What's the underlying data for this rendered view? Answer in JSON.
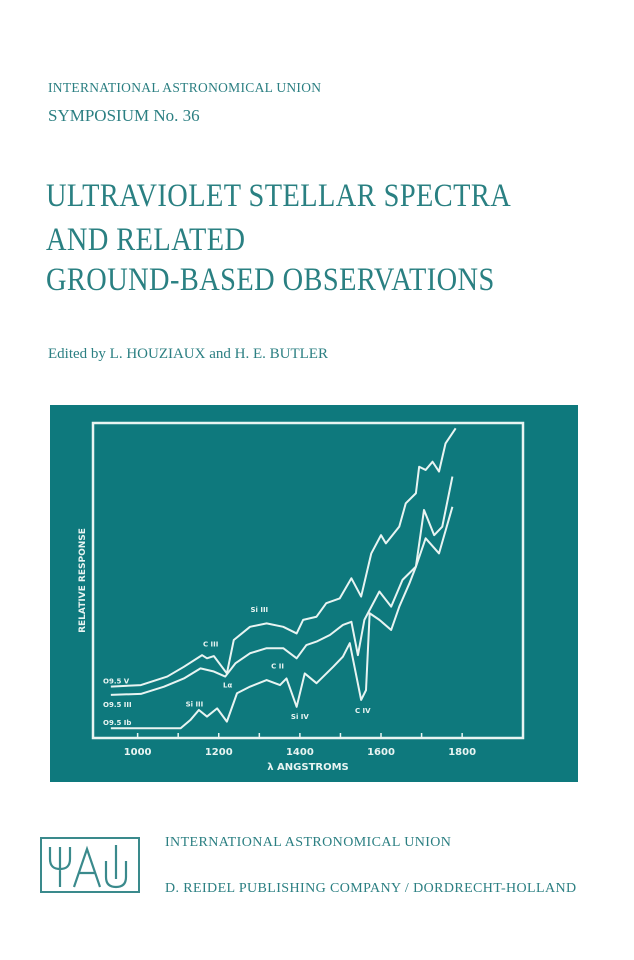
{
  "cover": {
    "series": "INTERNATIONAL ASTRONOMICAL UNION",
    "symposium": "SYMPOSIUM No. 36",
    "title_lines": [
      "ULTRAVIOLET STELLAR SPECTRA",
      "AND RELATED",
      "GROUND-BASED OBSERVATIONS"
    ],
    "editors": "Edited by L. HOUZIAUX and H. E. BUTLER",
    "publisher_org": "INTERNATIONAL ASTRONOMICAL UNION",
    "publisher": "D. REIDEL PUBLISHING COMPANY / DORDRECHT-HOLLAND",
    "logo_text": "IAU",
    "colors": {
      "text": "#2b7f82",
      "panel": "#0e797d",
      "curve": "#e8f4f2"
    }
  },
  "chart_data": {
    "type": "line",
    "xlabel": "λ ANGSTROMS",
    "ylabel": "RELATIVE RESPONSE",
    "xlim": [
      890,
      1950
    ],
    "ylim": [
      0,
      100
    ],
    "xticks": [
      1000,
      1200,
      1400,
      1600,
      1800
    ],
    "grid": false,
    "series": [
      {
        "name": "O9.5 V",
        "x": [
          934,
          1008,
          1073,
          1114,
          1159,
          1171,
          1188,
          1220,
          1237,
          1277,
          1318,
          1359,
          1392,
          1408,
          1441,
          1465,
          1498,
          1527,
          1551,
          1576,
          1600,
          1612,
          1645,
          1661,
          1686,
          1694,
          1710,
          1727,
          1743,
          1759,
          1784
        ],
        "y": [
          16.3,
          16.8,
          19.5,
          22.6,
          26.3,
          25.3,
          26.0,
          20.5,
          31.1,
          35.3,
          36.4,
          35.3,
          33.2,
          37.5,
          38.5,
          42.8,
          44.3,
          50.7,
          44.9,
          58.6,
          64.4,
          61.8,
          67.1,
          74.5,
          77.7,
          86.1,
          85.1,
          87.7,
          84.6,
          93.5,
          98.3
        ]
      },
      {
        "name": "O9.5 III",
        "x": [
          934,
          1008,
          1065,
          1114,
          1155,
          1188,
          1216,
          1241,
          1277,
          1318,
          1359,
          1392,
          1416,
          1441,
          1474,
          1506,
          1527,
          1543,
          1559,
          1596,
          1625,
          1653,
          1686,
          1706,
          1731,
          1751,
          1776
        ],
        "y": [
          13.7,
          14.0,
          16.3,
          18.9,
          22.1,
          21.1,
          19.5,
          23.7,
          26.9,
          28.5,
          28.5,
          25.3,
          29.5,
          30.6,
          32.7,
          35.9,
          36.9,
          26.3,
          37.5,
          46.5,
          41.7,
          50.2,
          54.4,
          72.4,
          64.4,
          67.1,
          83.0
        ]
      },
      {
        "name": "O9.5 Ib",
        "x": [
          934,
          1106,
          1130,
          1151,
          1171,
          1196,
          1220,
          1245,
          1277,
          1318,
          1351,
          1367,
          1392,
          1412,
          1441,
          1482,
          1506,
          1523,
          1551,
          1563,
          1572,
          1596,
          1625,
          1645,
          1670,
          1686,
          1710,
          1743,
          1776
        ],
        "y": [
          3.1,
          3.1,
          5.7,
          8.9,
          6.8,
          9.4,
          5.2,
          14.2,
          16.3,
          18.4,
          16.8,
          18.9,
          9.9,
          20.5,
          17.4,
          22.6,
          25.8,
          30.1,
          12.1,
          15.2,
          39.6,
          37.5,
          34.3,
          41.7,
          49.1,
          54.4,
          63.4,
          58.6,
          73.4
        ]
      }
    ],
    "annotations": [
      {
        "text": "C III",
        "x": 1180,
        "y": 29
      },
      {
        "text": "Si III",
        "x": 1300,
        "y": 40
      },
      {
        "text": "Lα",
        "x": 1222,
        "y": 16
      },
      {
        "text": "C II",
        "x": 1345,
        "y": 22
      },
      {
        "text": "Si IV",
        "x": 1400,
        "y": 6
      },
      {
        "text": "C IV",
        "x": 1555,
        "y": 8
      },
      {
        "text": "Si III",
        "x": 1140,
        "y": 10
      }
    ]
  }
}
